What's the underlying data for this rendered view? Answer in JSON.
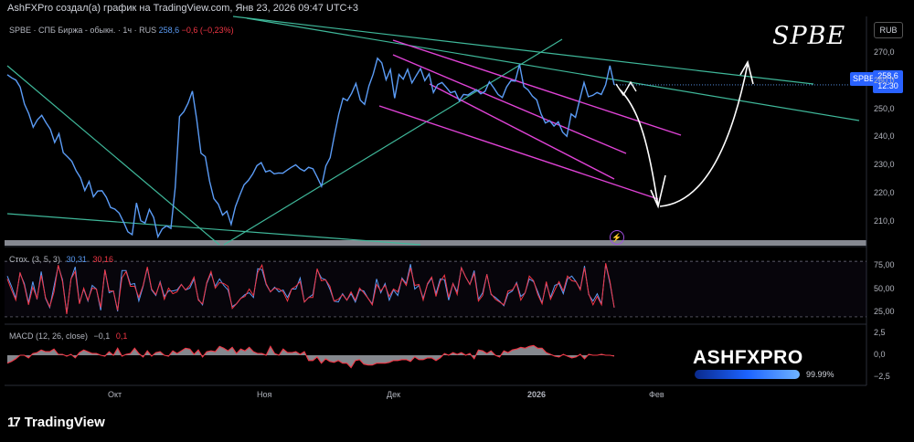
{
  "header": {
    "text": "AshFXPro создал(а) график на TradingView.com, Янв 23, 2026 09:47 UTC+3"
  },
  "symbol": {
    "description": "SPBE · СПБ Биржа - обыкн. · 1ч · RUS",
    "price": "258,6",
    "change": "−0,6 (−0,23%)"
  },
  "title_overlay": "SPBE",
  "currency": "RUB",
  "last_price_tag": {
    "ticker": "SPBE",
    "price": "258,6",
    "timer": "12:30"
  },
  "colors": {
    "price": "#5b9cf6",
    "magenta": "#e043d6",
    "teal": "#3fb89a",
    "stoch_k": "#5b9cf6",
    "stoch_d": "#f23645",
    "macd_line": "#f23645"
  },
  "stochastic": {
    "label": "Стох. (3, 5, 3)",
    "k": "30,31",
    "d": "30,16"
  },
  "macd": {
    "label": "MACD (12, 26, close)",
    "value1": "−0,1",
    "value2": "0,1"
  },
  "brand": {
    "name": "ASHFXPRO",
    "percent": "99.99%"
  },
  "footer": {
    "logo": "TradingView"
  },
  "chart_data": [
    {
      "type": "line",
      "title": "SPBE",
      "ylim": [
        202,
        277
      ],
      "y_ticks": [
        "270,0",
        "260,0",
        "250,0",
        "240,0",
        "230,0",
        "220,0",
        "210,0"
      ],
      "x_ticks": [
        "Окт",
        "Ноя",
        "Дек",
        "2026",
        "Фев"
      ],
      "series": [
        {
          "values": [
            262.2,
            261.1,
            260.3,
            257.8,
            251.8,
            248.4,
            243.6,
            246.3,
            247.8,
            245.2,
            242.9,
            238.2,
            241.3,
            234.6,
            233.1,
            231.5,
            228.2,
            225.7,
            221.2,
            224.4,
            219.0,
            221.0,
            221.1,
            218.8,
            215.2,
            214.6,
            213.2,
            210.1,
            206.6,
            205.6,
            216.8,
            210.5,
            209.7,
            214.5,
            211.7,
            204.8,
            207.6,
            208.7,
            207.8,
            222.2,
            247.4,
            249.1,
            252.1,
            256.4,
            246.4,
            234.4,
            233.2,
            224.5,
            218.3,
            216.4,
            212.5,
            213.9,
            209.2,
            215.5,
            219.5,
            223.2,
            224.8,
            227.0,
            230.0,
            231.1,
            227.8,
            228.3,
            227.1,
            227.4,
            227.3,
            228.4,
            229.4,
            230.3,
            228.9,
            228.1,
            229.4,
            228.9,
            225.9,
            222.7,
            229.9,
            232.8,
            240.7,
            248.2,
            253.9,
            253.0,
            255.6,
            259.1,
            253.2,
            251.7,
            258.2,
            262.4,
            268.0,
            266.4,
            260.4,
            264.0,
            253.9,
            262.3,
            260.6,
            264.1,
            259.3,
            261.9,
            264.4,
            260.1,
            262.5,
            255.9,
            258.7,
            259.4,
            257.7,
            255.8,
            256.3,
            253.0,
            255.2,
            255.0,
            256.0,
            256.9,
            255.4,
            256.3,
            259.7,
            257.6,
            255.2,
            254.1,
            257.9,
            260.1,
            259.9,
            265.8,
            258.0,
            256.8,
            254.6,
            253.3,
            248.4,
            245.1,
            245.9,
            244.0,
            245.5,
            241.9,
            240.4,
            248.3,
            247.1,
            253.4,
            259.4,
            254.4,
            254.9,
            255.9,
            255.2,
            258.6,
            265.4,
            258.6
          ]
        }
      ]
    },
    {
      "type": "line",
      "title": "Стох. (3, 5, 3)",
      "ylim": [
        15,
        90
      ],
      "y_ticks": [
        "75,00",
        "50,00",
        "25,00"
      ],
      "series": [
        {
          "name": "%K",
          "values": [
            64,
            53,
            40,
            67,
            56,
            35,
            58,
            39,
            69,
            40,
            30,
            53,
            75,
            60,
            24,
            61,
            74,
            35,
            50,
            37,
            54,
            50,
            27,
            71,
            46,
            48,
            26,
            70,
            70,
            55,
            56,
            37,
            53,
            73,
            49,
            43,
            58,
            42,
            48,
            48,
            49,
            55,
            49,
            51,
            61,
            39,
            33,
            56,
            67,
            53,
            61,
            54,
            49,
            31,
            34,
            40,
            44,
            46,
            41,
            72,
            71,
            55,
            47,
            52,
            47,
            49,
            41,
            50,
            50,
            62,
            36,
            41,
            44,
            71,
            62,
            60,
            50,
            37,
            36,
            45,
            38,
            45,
            36,
            49,
            48,
            40,
            34,
            61,
            46,
            56,
            38,
            49,
            43,
            62,
            56,
            77,
            50,
            54,
            40,
            55,
            62,
            45,
            61,
            60,
            38,
            56,
            47,
            73,
            63,
            55,
            70,
            39,
            46,
            66,
            44,
            41,
            37,
            32,
            45,
            48,
            57,
            42,
            46,
            61,
            58,
            47,
            35,
            56,
            41,
            54,
            56,
            45,
            61,
            64,
            58,
            50,
            75,
            44,
            37,
            45,
            34,
            77,
            56,
            30
          ]
        },
        {
          "name": "%D",
          "values": [
            61,
            49,
            38,
            68,
            54,
            33,
            52,
            40,
            65,
            41,
            31,
            47,
            76,
            58,
            23,
            61,
            69,
            34,
            51,
            38,
            51,
            50,
            30,
            71,
            48,
            48,
            27,
            62,
            69,
            53,
            53,
            41,
            54,
            74,
            50,
            44,
            57,
            39,
            51,
            45,
            47,
            55,
            49,
            54,
            63,
            38,
            34,
            57,
            69,
            51,
            57,
            56,
            53,
            29,
            34,
            40,
            42,
            50,
            43,
            68,
            76,
            56,
            47,
            51,
            50,
            47,
            37,
            50,
            53,
            58,
            36,
            41,
            41,
            72,
            59,
            60,
            53,
            37,
            39,
            44,
            38,
            47,
            38,
            51,
            46,
            40,
            33,
            55,
            48,
            54,
            42,
            50,
            47,
            61,
            54,
            73,
            54,
            55,
            38,
            56,
            63,
            42,
            58,
            65,
            41,
            56,
            44,
            73,
            63,
            55,
            67,
            37,
            43,
            66,
            45,
            39,
            36,
            33,
            48,
            49,
            56,
            38,
            46,
            64,
            59,
            44,
            34,
            58,
            39,
            49,
            58,
            48,
            64,
            59,
            58,
            49,
            73,
            45,
            33,
            42,
            33,
            78,
            58,
            30
          ]
        }
      ]
    },
    {
      "type": "area",
      "title": "MACD (12, 26, close)",
      "ylim": [
        -3.2,
        3.2
      ],
      "y_ticks": [
        "2,5",
        "0,0",
        "−2,5"
      ],
      "series": [
        {
          "name": "MACD",
          "values": [
            -0.9,
            -0.7,
            -0.4,
            0.0,
            0.0,
            -0.3,
            0.2,
            0.3,
            0.6,
            0.4,
            0.4,
            0.7,
            0.1,
            0.1,
            -0.1,
            0.1,
            -0.3,
            0.3,
            0.6,
            0.4,
            0.2,
            0.2,
            0.0,
            -0.1,
            0.4,
            0.0,
            0.8,
            -0.1,
            0.1,
            0.2,
            0.8,
            0.2,
            -0.2,
            0.5,
            -0.1,
            0.3,
            0.4,
            0.0,
            -0.1,
            0.5,
            0.2,
            0.5,
            0.8,
            0.7,
            0.1,
            0.6,
            -0.2,
            0.4,
            0.5,
            0.4,
            1.0,
            0.8,
            0.5,
            0.9,
            0.2,
            0.7,
            0.5,
            0.9,
            0.4,
            0.2,
            0.2,
            0.0,
            1.0,
            0.2,
            0.0,
            0.7,
            0.3,
            0.3,
            0.4,
            0.1,
            0.4,
            -0.6,
            -0.6,
            -0.2,
            -0.9,
            -0.4,
            -0.7,
            -0.8,
            -0.6,
            -0.9,
            -0.9,
            -1.4,
            -0.6,
            -0.5,
            -1.0,
            -1.1,
            -1.1,
            -0.9,
            -0.9,
            -0.9,
            -0.8,
            -0.6,
            -0.6,
            -0.5,
            -0.5,
            -0.7,
            -0.2,
            -0.5,
            -0.5,
            -0.3,
            -0.3,
            -0.6,
            -0.3,
            0.2,
            0.0,
            0.3,
            0.1,
            0.3,
            0.0,
            0.2,
            -0.4,
            0.6,
            0.5,
            0.2,
            0.5,
            0.0,
            -0.2,
            0.5,
            0.3,
            0.6,
            0.7,
            0.9,
            0.8,
            1.0,
            1.1,
            0.8,
            0.8,
            0.3,
            0.1,
            -0.1,
            -0.2,
            0.1,
            -0.1,
            -0.3,
            -0.2,
            0.1,
            -0.4,
            0.1,
            0.0,
            0.0,
            0.1,
            0.0,
            0.0,
            -0.1
          ]
        }
      ]
    }
  ]
}
